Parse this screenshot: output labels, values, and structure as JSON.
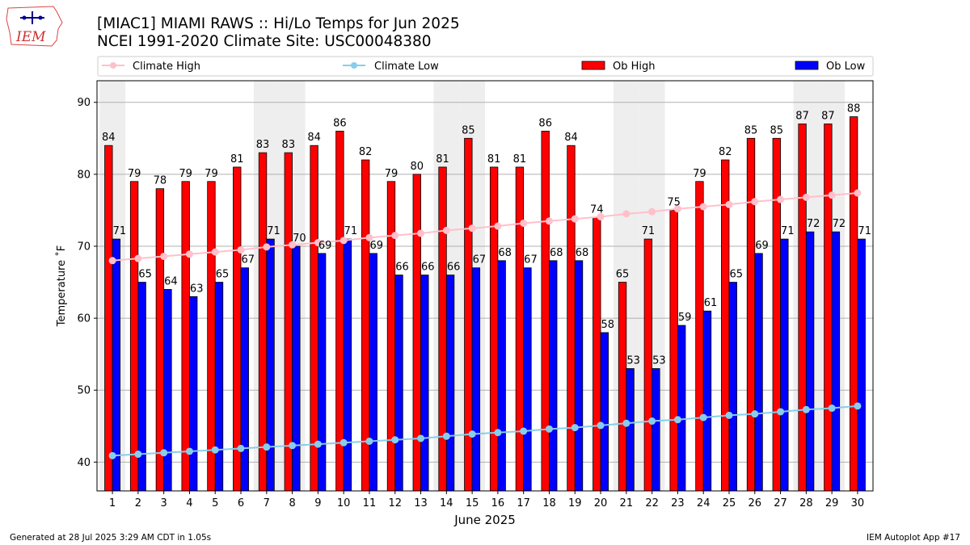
{
  "header": {
    "title_line1": "[MIAC1] MIAMI RAWS :: Hi/Lo Temps for Jun 2025",
    "title_line2": "NCEI 1991-2020 Climate Site: USC00048380",
    "logo_text": "IEM"
  },
  "footer": {
    "generated": "Generated at 28 Jul 2025 3:29 AM CDT in 1.05s",
    "app": "IEM Autoplot App #17"
  },
  "colors": {
    "ob_high": "#ff0000",
    "ob_low": "#0000ff",
    "climate_high": "#ffc0cb",
    "climate_low": "#87ceeb",
    "weekend_shade": "#eeeeee",
    "grid": "#b0b0b0"
  },
  "chart_data": {
    "type": "bar",
    "xlabel": "June 2025",
    "ylabel": "Temperature ˚F",
    "ylim": [
      36,
      93
    ],
    "yticks": [
      40,
      50,
      60,
      70,
      80,
      90
    ],
    "grid": "horizontal",
    "legend": {
      "placement": "top",
      "entries": [
        "Climate High",
        "Climate Low",
        "Ob High",
        "Ob Low"
      ]
    },
    "categories": [
      "1",
      "2",
      "3",
      "4",
      "5",
      "6",
      "7",
      "8",
      "9",
      "10",
      "11",
      "12",
      "13",
      "14",
      "15",
      "16",
      "17",
      "18",
      "19",
      "20",
      "21",
      "22",
      "23",
      "24",
      "25",
      "26",
      "27",
      "28",
      "29",
      "30"
    ],
    "weekend_days": [
      1,
      7,
      8,
      14,
      15,
      21,
      22,
      28,
      29
    ],
    "series": [
      {
        "name": "Ob High",
        "kind": "bar",
        "values": [
          84,
          79,
          78,
          79,
          79,
          81,
          83,
          83,
          84,
          86,
          82,
          79,
          80,
          81,
          85,
          81,
          81,
          86,
          84,
          74,
          65,
          71,
          75,
          79,
          82,
          85,
          85,
          87,
          87,
          88
        ]
      },
      {
        "name": "Ob Low",
        "kind": "bar",
        "values": [
          71,
          65,
          64,
          63,
          65,
          67,
          71,
          70,
          69,
          71,
          69,
          66,
          66,
          66,
          67,
          68,
          67,
          68,
          68,
          58,
          53,
          53,
          59,
          61,
          65,
          69,
          71,
          72,
          72,
          71
        ]
      },
      {
        "name": "Climate High",
        "kind": "line",
        "values": [
          68.0,
          68.3,
          68.6,
          68.9,
          69.2,
          69.5,
          69.9,
          70.2,
          70.5,
          70.8,
          71.2,
          71.5,
          71.8,
          72.2,
          72.5,
          72.8,
          73.2,
          73.5,
          73.8,
          74.1,
          74.5,
          74.8,
          75.2,
          75.5,
          75.8,
          76.2,
          76.5,
          76.8,
          77.1,
          77.4
        ]
      },
      {
        "name": "Climate Low",
        "kind": "line",
        "values": [
          40.9,
          41.1,
          41.3,
          41.5,
          41.7,
          41.9,
          42.1,
          42.3,
          42.5,
          42.7,
          42.9,
          43.1,
          43.3,
          43.6,
          43.9,
          44.1,
          44.3,
          44.6,
          44.8,
          45.1,
          45.4,
          45.7,
          45.9,
          46.2,
          46.5,
          46.7,
          47.0,
          47.3,
          47.5,
          47.8
        ]
      }
    ]
  }
}
